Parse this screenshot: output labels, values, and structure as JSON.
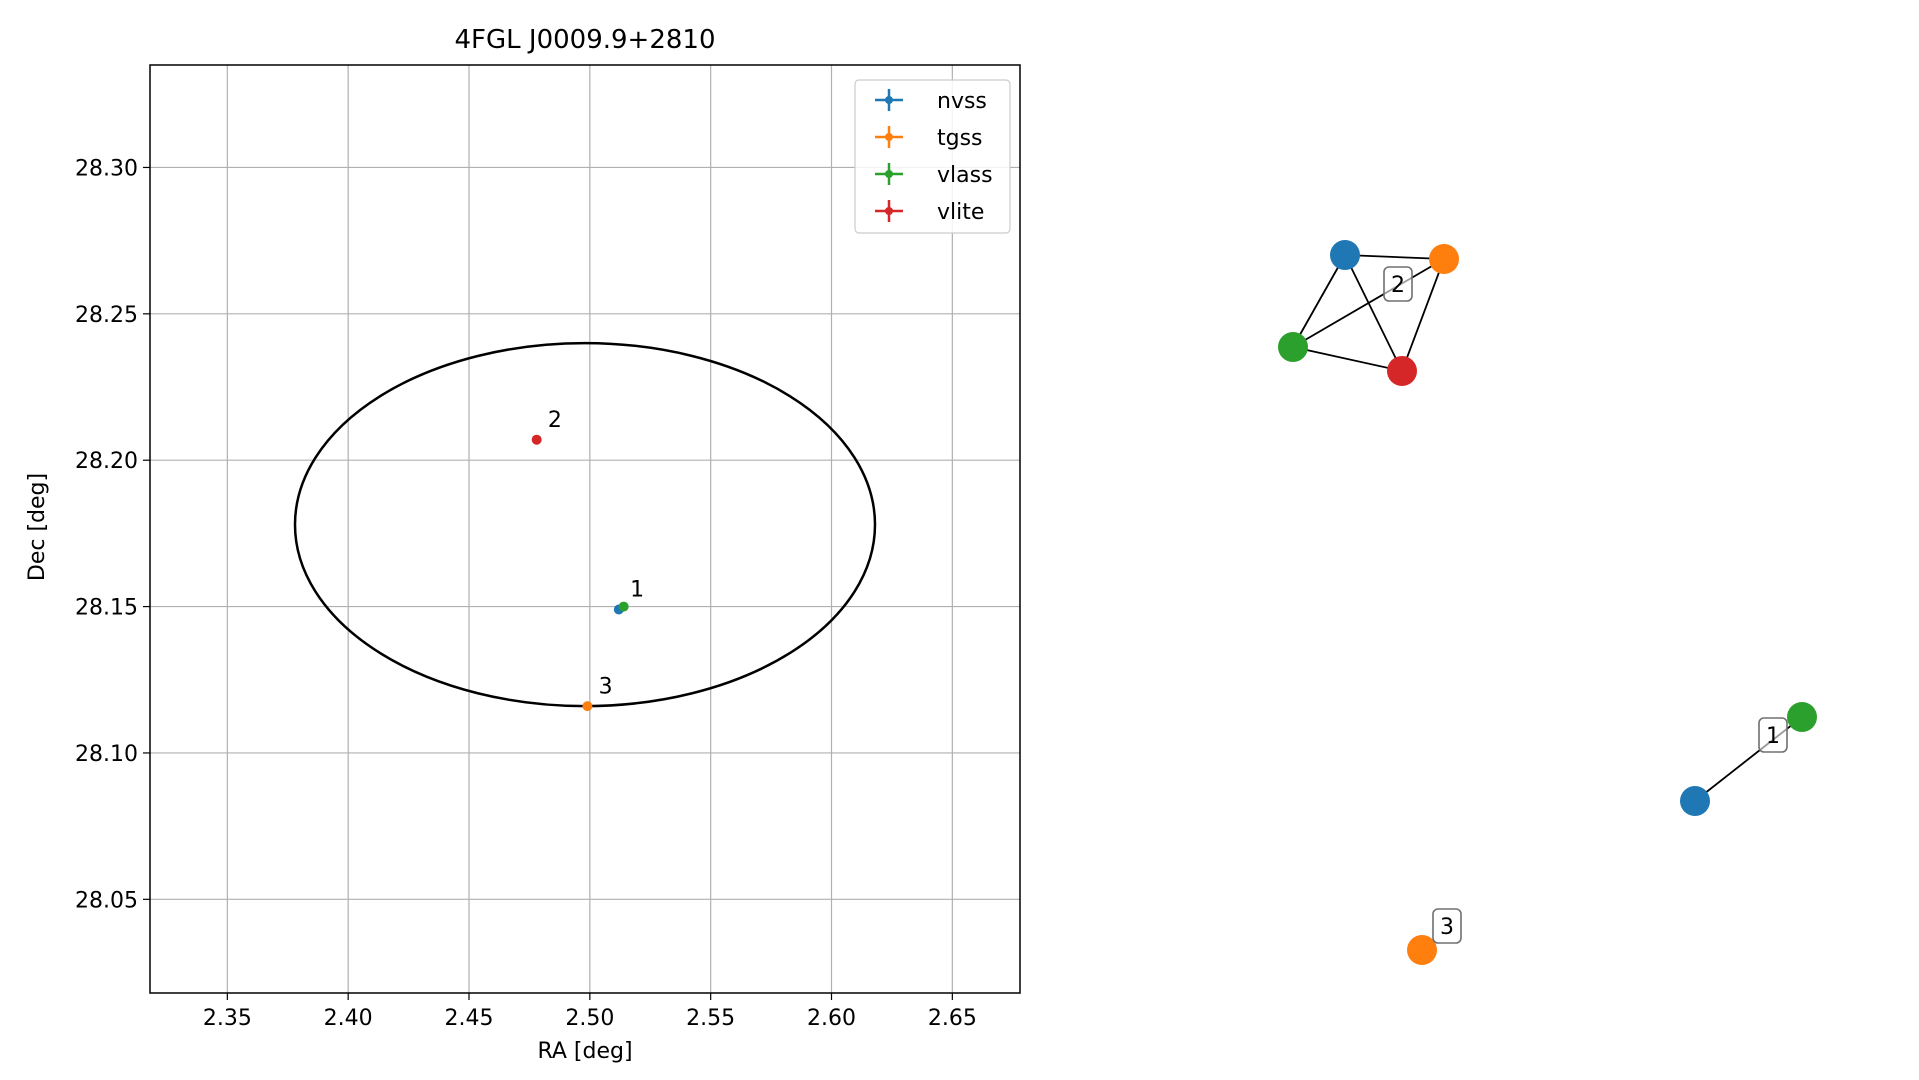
{
  "chart_data": [
    {
      "type": "scatter",
      "title": "4FGL J0009.9+2810",
      "xlabel": "RA [deg]",
      "ylabel": "Dec [deg]",
      "xlim": [
        2.318,
        2.678
      ],
      "ylim": [
        28.018,
        28.335
      ],
      "xticks": [
        "2.35",
        "2.40",
        "2.45",
        "2.50",
        "2.55",
        "2.60",
        "2.65"
      ],
      "yticks": [
        "28.05",
        "28.10",
        "28.15",
        "28.20",
        "28.25",
        "28.30"
      ],
      "grid": true,
      "legend_position": "top-right",
      "ellipse": {
        "center": [
          2.498,
          28.178
        ],
        "semi_axis_ra": 0.12,
        "semi_axis_dec": 0.062
      },
      "series": [
        {
          "name": "nvss",
          "color": "#1f77b4",
          "points": [
            [
              2.512,
              28.149
            ]
          ]
        },
        {
          "name": "tgss",
          "color": "#ff7f0e",
          "points": [
            [
              2.499,
              28.116
            ]
          ]
        },
        {
          "name": "vlass",
          "color": "#2ca02c",
          "points": [
            [
              2.514,
              28.15
            ]
          ]
        },
        {
          "name": "vlite",
          "color": "#d62728",
          "points": [
            [
              2.478,
              28.207
            ]
          ]
        }
      ],
      "annotations": [
        {
          "text": "1",
          "x": 2.515,
          "y": 28.152
        },
        {
          "text": "2",
          "x": 2.481,
          "y": 28.21
        },
        {
          "text": "3",
          "x": 2.502,
          "y": 28.119
        }
      ]
    },
    {
      "type": "network",
      "nodes": [
        {
          "survey": "nvss",
          "color": "#1f77b4",
          "group": "2"
        },
        {
          "survey": "tgss",
          "color": "#ff7f0e",
          "group": "2"
        },
        {
          "survey": "vlass",
          "color": "#2ca02c",
          "group": "2"
        },
        {
          "survey": "vlite",
          "color": "#d62728",
          "group": "2"
        },
        {
          "survey": "nvss",
          "color": "#1f77b4",
          "group": "1"
        },
        {
          "survey": "vlass",
          "color": "#2ca02c",
          "group": "1"
        },
        {
          "survey": "tgss",
          "color": "#ff7f0e",
          "group": "3"
        }
      ],
      "edges": [
        [
          0,
          1
        ],
        [
          0,
          2
        ],
        [
          0,
          3
        ],
        [
          1,
          2
        ],
        [
          1,
          3
        ],
        [
          2,
          3
        ],
        [
          4,
          5
        ]
      ],
      "labels": [
        "2",
        "1",
        "3"
      ]
    }
  ]
}
